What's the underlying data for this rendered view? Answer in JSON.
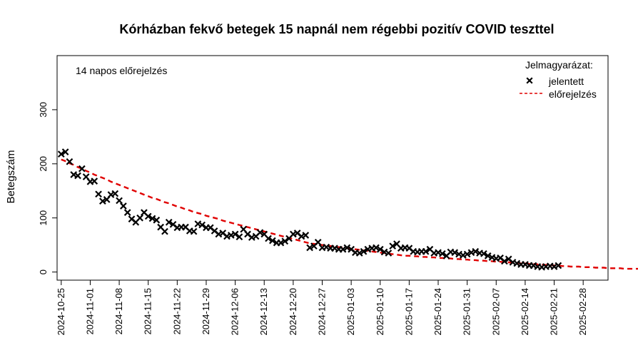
{
  "chart_data": {
    "type": "scatter",
    "title": "Kórházban fekvő betegek 15 napnál nem régebbi pozitív COVID teszttel",
    "xlabel": "",
    "ylabel": "Betegszám",
    "annotation": "14 napos előrejelzés",
    "legend": {
      "title": "Jelmagyarázat:",
      "position": "top-right",
      "entries": [
        {
          "label": "jelentett",
          "marker": "x",
          "color": "#000000"
        },
        {
          "label": "előrejelzés",
          "line": "dashed",
          "color": "#e00000"
        }
      ]
    },
    "x_ticks": [
      "2024-10-25",
      "2024-11-01",
      "2024-11-08",
      "2024-11-15",
      "2024-11-22",
      "2024-11-29",
      "2024-12-06",
      "2024-12-13",
      "2024-12-20",
      "2024-12-27",
      "2025-01-03",
      "2025-01-10",
      "2025-01-17",
      "2025-01-24",
      "2025-01-31",
      "2025-02-07",
      "2025-02-14",
      "2025-02-21",
      "2025-02-28"
    ],
    "y_ticks": [
      0,
      100,
      200,
      300
    ],
    "xlim": [
      "2024-10-24",
      "2025-03-06"
    ],
    "ylim": [
      -15,
      400
    ],
    "series": [
      {
        "name": "jelentett",
        "start_date": "2024-10-25",
        "values": [
          218,
          222,
          204,
          180,
          178,
          191,
          176,
          167,
          168,
          144,
          131,
          134,
          143,
          145,
          132,
          122,
          110,
          98,
          92,
          100,
          110,
          103,
          99,
          96,
          83,
          75,
          92,
          88,
          82,
          83,
          83,
          76,
          75,
          89,
          87,
          82,
          82,
          76,
          70,
          72,
          66,
          68,
          70,
          65,
          79,
          70,
          64,
          66,
          73,
          70,
          62,
          58,
          54,
          54,
          57,
          62,
          70,
          72,
          66,
          68,
          45,
          48,
          55,
          45,
          46,
          44,
          44,
          42,
          42,
          45,
          42,
          36,
          35,
          38,
          42,
          44,
          45,
          42,
          37,
          35,
          48,
          52,
          44,
          45,
          44,
          38,
          37,
          38,
          38,
          42,
          35,
          36,
          34,
          30,
          37,
          36,
          33,
          31,
          33,
          36,
          38,
          35,
          34,
          30,
          27,
          25,
          26,
          20,
          24,
          18,
          16,
          14,
          14,
          12,
          12,
          10,
          9,
          10,
          11,
          10,
          12
        ]
      },
      {
        "name": "előrejelzés",
        "start_date": "2024-10-25",
        "values": [
          208,
          205,
          201,
          198,
          194,
          191,
          187,
          184,
          180,
          177,
          174,
          171,
          167,
          164,
          161,
          158,
          155,
          152,
          149,
          146,
          143,
          140,
          137,
          135,
          132,
          129,
          127,
          124,
          121,
          119,
          116,
          114,
          111,
          109,
          107,
          104,
          102,
          100,
          98,
          95,
          93,
          91,
          89,
          87,
          85,
          83,
          81,
          79,
          77,
          75,
          73,
          71,
          69,
          67,
          65,
          63,
          61,
          59,
          57,
          55,
          53,
          52,
          51,
          50,
          49,
          48,
          47,
          46,
          45,
          44,
          43,
          42,
          41,
          40,
          39,
          38,
          37,
          36,
          35,
          34,
          33,
          32,
          31,
          30,
          30,
          29,
          29,
          28,
          28,
          27,
          27,
          26,
          26,
          25,
          25,
          24,
          24,
          23,
          23,
          22,
          22,
          21,
          21,
          20,
          20,
          19,
          19,
          18,
          18,
          17,
          17,
          16,
          16,
          15,
          15,
          14,
          14,
          13,
          13,
          12,
          12,
          11,
          11,
          10,
          10,
          10,
          9,
          9,
          9,
          8,
          8,
          8,
          7,
          7,
          7,
          7,
          6,
          6,
          6,
          6,
          6,
          5,
          5,
          5
        ]
      }
    ]
  }
}
